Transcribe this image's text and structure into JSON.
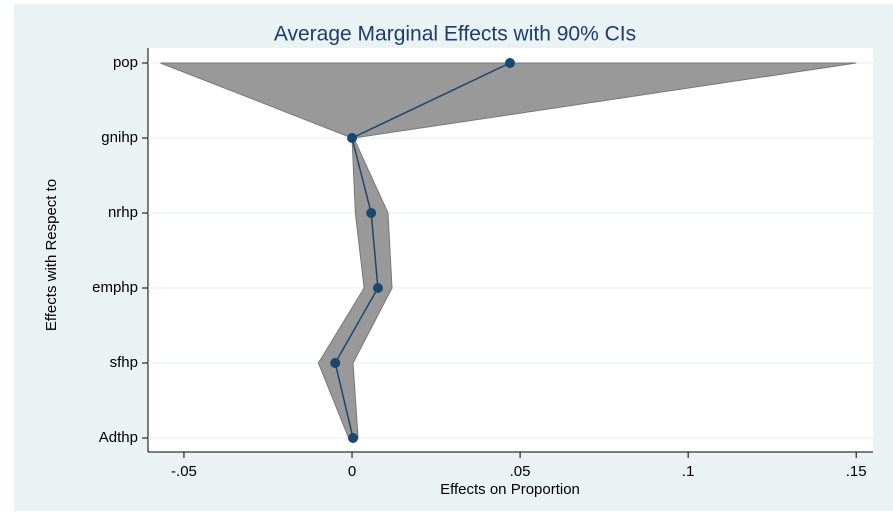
{
  "chart_data": {
    "type": "line",
    "orientation": "horizontal",
    "title": "Average Marginal Effects with 90% CIs",
    "xlabel": "Effects on Proportion",
    "ylabel": "Effects with Respect to",
    "categories": [
      "pop",
      "gnihp",
      "nrhp",
      "emphp",
      "sfhp",
      "Adthp"
    ],
    "values": [
      0.047,
      0.0,
      0.0057,
      0.0077,
      -0.005,
      0.0003
    ],
    "ci_lower": [
      -0.057,
      0.0,
      0.001,
      0.0036,
      -0.01,
      -0.001
    ],
    "ci_upper": [
      0.15,
      0.0005,
      0.0107,
      0.0119,
      0.0003,
      0.0018
    ],
    "color": "#1a476f",
    "band_color": "#999999",
    "xlim": [
      -0.0607,
      0.155
    ],
    "xticks": [
      {
        "value": -0.05,
        "label": "-.05"
      },
      0,
      {
        "value": 0.05,
        "label": ".05"
      },
      {
        "value": 0.1,
        "label": ".1"
      },
      {
        "value": 0.15,
        "label": ".15"
      }
    ],
    "grid": true
  }
}
